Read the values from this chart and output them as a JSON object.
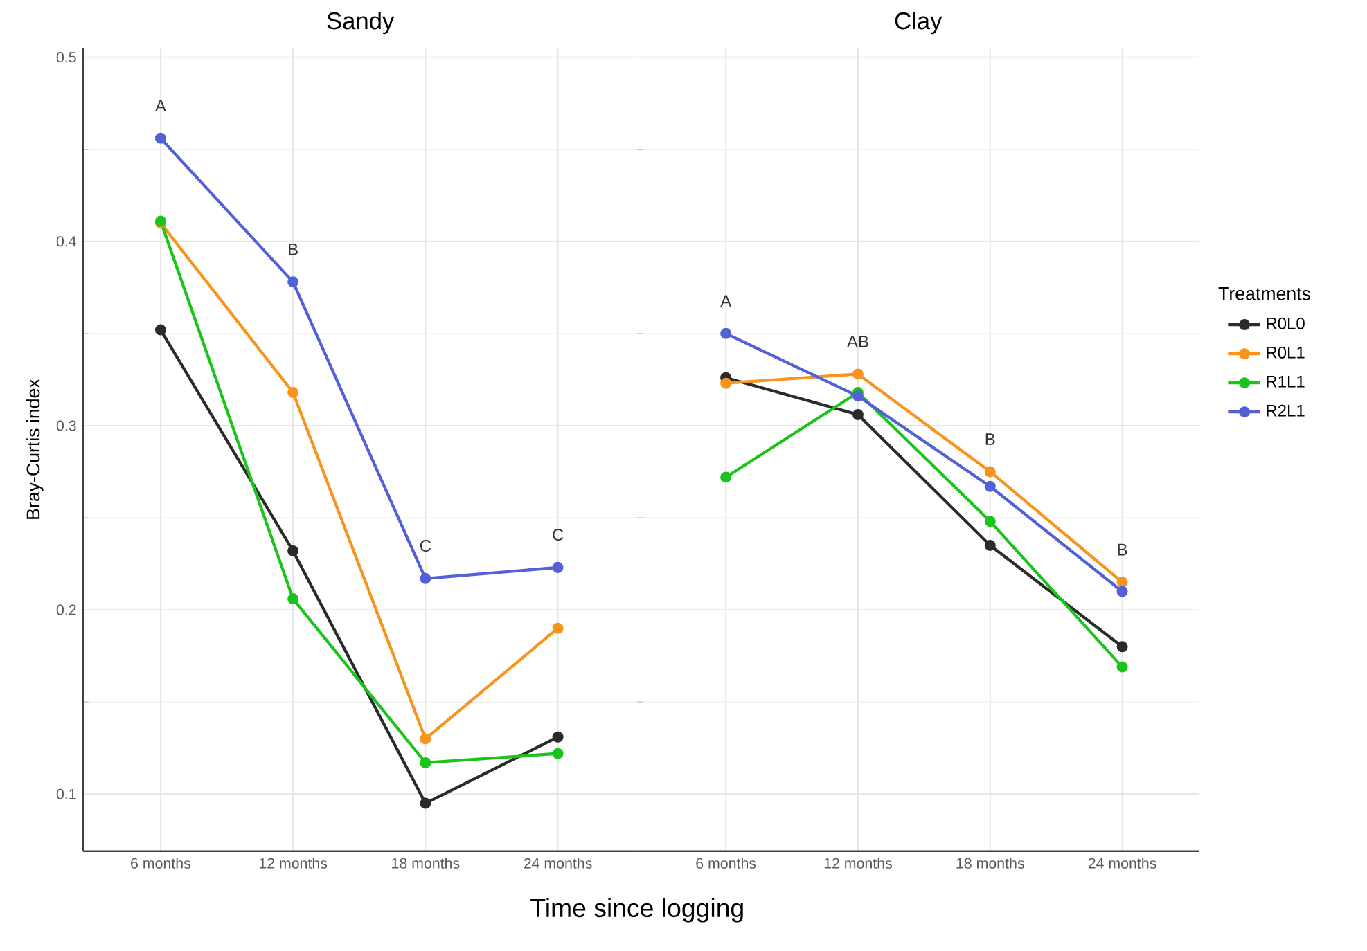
{
  "chart_data": [
    {
      "type": "line",
      "title": "Sandy",
      "xlabel": "Time since logging",
      "ylabel": "Bray-Curtis index",
      "categories": [
        "6 months",
        "12 months",
        "18 months",
        "24 months"
      ],
      "ylim": [
        0.069,
        0.505
      ],
      "yticks": [
        0.1,
        0.2,
        0.3,
        0.4,
        0.5
      ],
      "grid": true,
      "marker": "circle",
      "line_style": "solid",
      "legend": false,
      "series": [
        {
          "color": "#2b2b2b",
          "values": [
            0.352,
            0.232,
            0.095,
            0.131
          ]
        },
        {
          "color": "#f7941d",
          "values": [
            0.41,
            0.318,
            0.13,
            0.19
          ]
        },
        {
          "color": "#1ac41a",
          "values": [
            0.411,
            0.206,
            0.117,
            0.122
          ]
        },
        {
          "color": "#5360d6",
          "values": [
            0.456,
            0.378,
            0.217,
            0.223
          ]
        }
      ],
      "annotations": [
        "A",
        "B",
        "C",
        "C"
      ]
    },
    {
      "type": "line",
      "title": "Clay",
      "categories": [
        "6 months",
        "12 months",
        "18 months",
        "24 months"
      ],
      "ylim": [
        0.069,
        0.505
      ],
      "yticks": [
        0.1,
        0.2,
        0.3,
        0.4,
        0.5
      ],
      "grid": true,
      "marker": "circle",
      "line_style": "solid",
      "tick_labels": "x",
      "legend": "right",
      "legend_title": "Treatments",
      "series": [
        {
          "name": "R0L0",
          "color": "#2b2b2b",
          "values": [
            0.326,
            0.306,
            0.235,
            0.18
          ]
        },
        {
          "name": "R0L1",
          "color": "#f7941d",
          "values": [
            0.323,
            0.328,
            0.275,
            0.215
          ]
        },
        {
          "name": "R1L1",
          "color": "#1ac41a",
          "values": [
            0.272,
            0.318,
            0.248,
            0.169
          ]
        },
        {
          "name": "R2L1",
          "color": "#5360d6",
          "values": [
            0.35,
            0.316,
            0.267,
            0.21
          ]
        }
      ],
      "annotations": [
        "A",
        "AB",
        "B",
        "B"
      ]
    }
  ]
}
